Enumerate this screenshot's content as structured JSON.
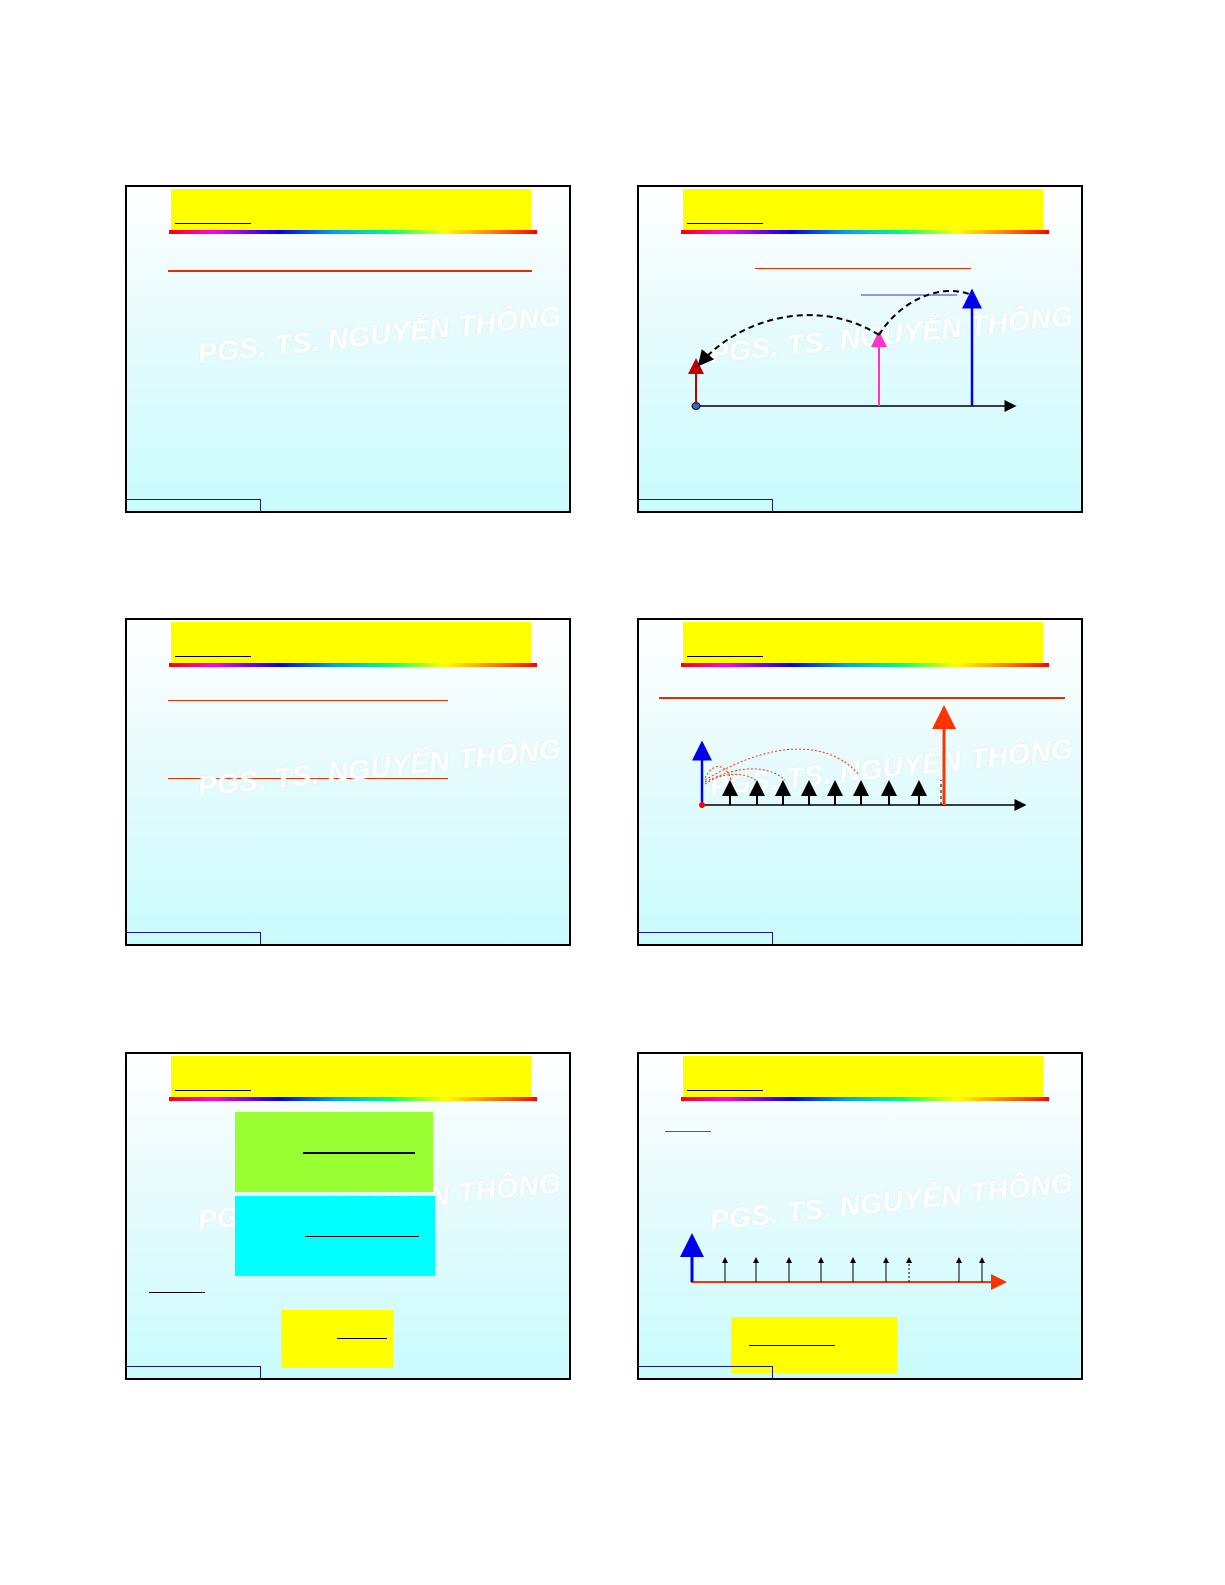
{
  "watermark_text": "PGS. TS. NGUYỄN THÔNG",
  "colors": {
    "title_box": "#ffff00",
    "accent_line": "#e03000",
    "slide_bg_bottom": "#c9fbfd",
    "green_box": "#99ff33",
    "cyan_box": "#00ffff",
    "yellow_box": "#ffff00"
  },
  "slides": [
    {
      "id": 1,
      "content": "title, watermark, single rule line"
    },
    {
      "id": 2,
      "content": "timeline with three arrows linked by dashed arcs"
    },
    {
      "id": 3,
      "content": "two rule lines"
    },
    {
      "id": 4,
      "content": "series of impulses with dotted arcs and large red arrow"
    },
    {
      "id": 5,
      "content": "green, cyan and yellow formula boxes"
    },
    {
      "id": 6,
      "content": "impulse train on red axis and yellow box"
    }
  ]
}
